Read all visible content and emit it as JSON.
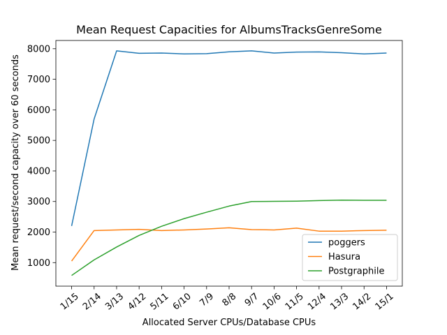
{
  "chart_data": {
    "type": "line",
    "title": "Mean Request Capacities for AlbumsTracksGenreSome",
    "xlabel": "Allocated Server CPUs/Database CPUs",
    "ylabel": "Mean request/second capacity over 60 seconds",
    "categories": [
      "1/15",
      "2/14",
      "3/13",
      "4/12",
      "5/11",
      "6/10",
      "7/9",
      "8/8",
      "9/7",
      "10/6",
      "11/5",
      "12/4",
      "13/3",
      "14/2",
      "15/1"
    ],
    "yticks": [
      1000,
      2000,
      3000,
      4000,
      5000,
      6000,
      7000,
      8000
    ],
    "ylim": [
      230,
      8270
    ],
    "grid": false,
    "legend_position": "lower right",
    "series": [
      {
        "name": "poggers",
        "color": "#1f77b4",
        "values": [
          2200,
          5700,
          7930,
          7850,
          7860,
          7830,
          7840,
          7900,
          7930,
          7860,
          7890,
          7895,
          7870,
          7830,
          7860
        ]
      },
      {
        "name": "Hasura",
        "color": "#ff7f0e",
        "values": [
          1050,
          2050,
          2070,
          2090,
          2050,
          2070,
          2100,
          2140,
          2080,
          2070,
          2130,
          2030,
          2030,
          2050,
          2060
        ]
      },
      {
        "name": "Postgraphile",
        "color": "#2ca02c",
        "values": [
          580,
          1090,
          1510,
          1890,
          2190,
          2440,
          2650,
          2850,
          3000,
          3005,
          3010,
          3030,
          3045,
          3040,
          3040
        ]
      }
    ]
  }
}
